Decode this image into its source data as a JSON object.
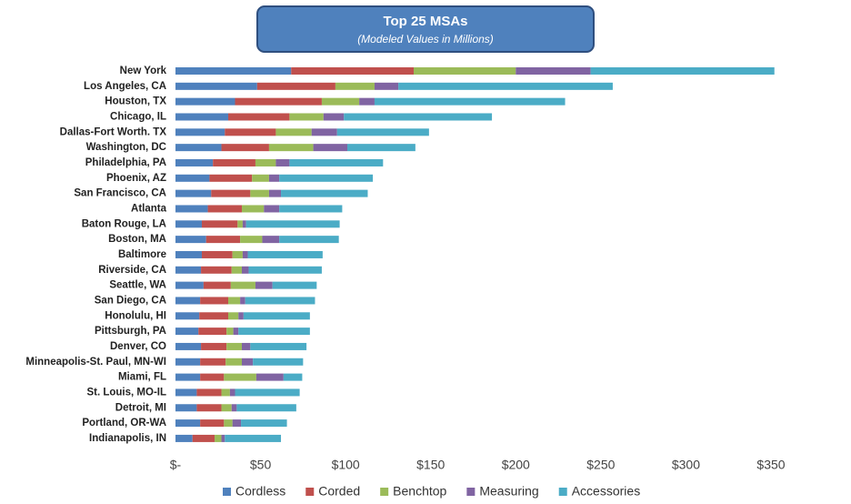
{
  "chart_data": {
    "type": "stacked-bar-horizontal",
    "title": "Top 25 MSAs",
    "subtitle": "(Modeled Values in Millions)",
    "categories": [
      "New York",
      "Los Angeles, CA",
      "Houston, TX",
      "Chicago, IL",
      "Dallas-Fort Worth. TX",
      "Washington, DC",
      "Philadelphia, PA",
      "Phoenix, AZ",
      "San Francisco, CA",
      "Atlanta",
      "Baton Rouge, LA",
      "Boston, MA",
      "Baltimore",
      "Riverside, CA",
      "Seattle, WA",
      "San Diego, CA",
      "Honolulu, HI",
      "Pittsburgh, PA",
      "Denver, CO",
      "Minneapolis-St. Paul, MN-WI",
      "Miami, FL",
      "St. Louis, MO-IL",
      "Detroit, MI",
      "Portland, OR-WA",
      "Indianapolis, IN"
    ],
    "series": [
      {
        "name": "Cordless",
        "color": "#4f81bd",
        "values": [
          68,
          48,
          35,
          31,
          29,
          27,
          22,
          20,
          21,
          19,
          15.5,
          18,
          15.5,
          15,
          16.5,
          14.5,
          14,
          13.5,
          15,
          14.5,
          14.5,
          12.5,
          12.5,
          14.5,
          10
        ]
      },
      {
        "name": "Corded",
        "color": "#c0504d",
        "values": [
          72,
          46,
          51,
          36,
          30,
          28,
          25,
          25,
          23,
          20,
          21,
          20,
          18,
          18,
          16,
          16.5,
          17,
          16.5,
          15,
          15,
          14,
          14.5,
          14.5,
          14,
          13
        ]
      },
      {
        "name": "Benchtop",
        "color": "#9bbb59",
        "values": [
          60,
          23,
          22,
          20,
          21,
          26,
          12,
          10,
          11,
          13,
          3,
          13,
          6,
          6,
          14.5,
          7,
          6,
          4,
          9,
          9.5,
          19,
          5,
          6,
          5,
          4
        ]
      },
      {
        "name": "Measuring",
        "color": "#8064a2",
        "values": [
          44,
          14,
          9,
          12,
          15,
          20,
          8,
          6,
          7,
          9,
          2,
          10,
          3,
          4,
          10,
          3,
          3,
          3,
          5,
          6.5,
          16,
          3,
          3,
          5,
          2
        ]
      },
      {
        "name": "Accessories",
        "color": "#4bacc6",
        "values": [
          108,
          126,
          112,
          87,
          54,
          40,
          55,
          55,
          51,
          37,
          55,
          35,
          44,
          43,
          26,
          41,
          39,
          42,
          33,
          29.5,
          11,
          38,
          35,
          27,
          33
        ]
      }
    ],
    "xlim": [
      0,
      350
    ],
    "xticks": [
      {
        "value": 0,
        "label": "$-"
      },
      {
        "value": 50,
        "label": "$50"
      },
      {
        "value": 100,
        "label": "$100"
      },
      {
        "value": 150,
        "label": "$150"
      },
      {
        "value": 200,
        "label": "$200"
      },
      {
        "value": 250,
        "label": "$250"
      },
      {
        "value": 300,
        "label": "$300"
      },
      {
        "value": 350,
        "label": "$350"
      }
    ]
  }
}
